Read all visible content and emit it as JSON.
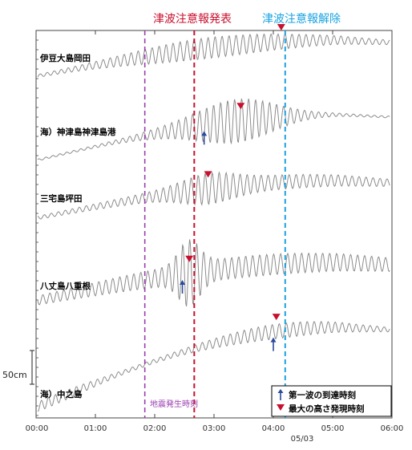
{
  "chart_data": {
    "type": "line",
    "x_unit": "time",
    "x_ticks": [
      "00:00",
      "01:00",
      "02:00",
      "03:00",
      "04:00",
      "05:00",
      "06:00"
    ],
    "date_label": "05/03",
    "scale_bar_label": "50cm",
    "events": {
      "earthquake": {
        "label": "地震発生時刻",
        "time": "01:50",
        "color": "#9b3fb0"
      },
      "warning_issued": {
        "label": "津波注意報発表",
        "time": "02:40",
        "color": "#c8102e"
      },
      "warning_cleared": {
        "label": "津波注意報解除",
        "time": "04:12",
        "color": "#1aa3e0"
      }
    },
    "stations": [
      {
        "name": "伊豆大島岡田",
        "first_arrival": null,
        "max_height_time": "04:08"
      },
      {
        "name": "海）神津島神津島港",
        "first_arrival": "02:50",
        "max_height_time": "03:27"
      },
      {
        "name": "三宅島坪田",
        "first_arrival": null,
        "max_height_time": "02:54"
      },
      {
        "name": "八丈島八重根",
        "first_arrival": "02:28",
        "max_height_time": "02:35"
      },
      {
        "name": "海）中之島",
        "first_arrival": "04:00",
        "max_height_time": "04:03"
      }
    ],
    "legend": [
      {
        "symbol": "blue-up-arrow",
        "label": "第一波の到達時刻"
      },
      {
        "symbol": "red-down-triangle",
        "label": "最大の高さ発現時刻"
      }
    ],
    "colors": {
      "wave": "#8c8c8c",
      "arrival_marker": "#2b4a9b",
      "max_marker": "#c8102e",
      "frame": "#444444"
    }
  }
}
